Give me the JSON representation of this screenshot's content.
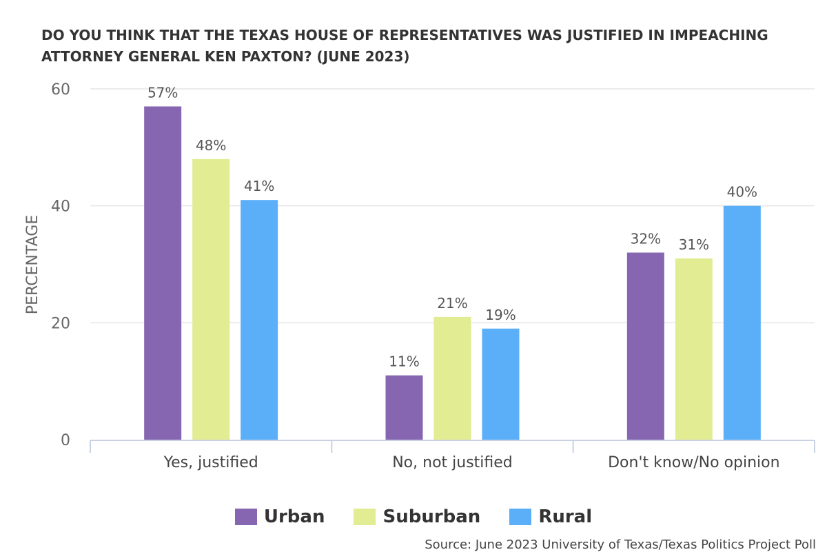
{
  "chart_data": {
    "type": "bar",
    "title": "DO YOU THINK THAT THE TEXAS HOUSE OF REPRESENTATIVES WAS JUSTIFIED IN IMPEACHING ATTORNEY GENERAL KEN PAXTON? (JUNE 2023)",
    "xlabel": "",
    "ylabel": "PERCENTAGE",
    "ylim": [
      0,
      60
    ],
    "yticks": [
      0,
      20,
      40,
      60
    ],
    "grid": true,
    "legend_position": "bottom",
    "categories": [
      "Yes, justified",
      "No, not justified",
      "Don't know/No opinion"
    ],
    "series": [
      {
        "name": "Urban",
        "color": "#8666b1",
        "values": [
          57,
          11,
          32
        ],
        "labels": [
          "57%",
          "11%",
          "32%"
        ]
      },
      {
        "name": "Suburban",
        "color": "#e2ec93",
        "values": [
          48,
          21,
          31
        ],
        "labels": [
          "48%",
          "21%",
          "31%"
        ]
      },
      {
        "name": "Rural",
        "color": "#5aaff8",
        "values": [
          41,
          19,
          40
        ],
        "labels": [
          "41%",
          "19%",
          "40%"
        ]
      }
    ],
    "source": "Source: June 2023 University of Texas/Texas Politics Project Poll"
  },
  "colors": {
    "grid": "#e6e6e6",
    "axis": "#c7d3e3",
    "tick_text": "#666666",
    "label_text": "#555555"
  }
}
